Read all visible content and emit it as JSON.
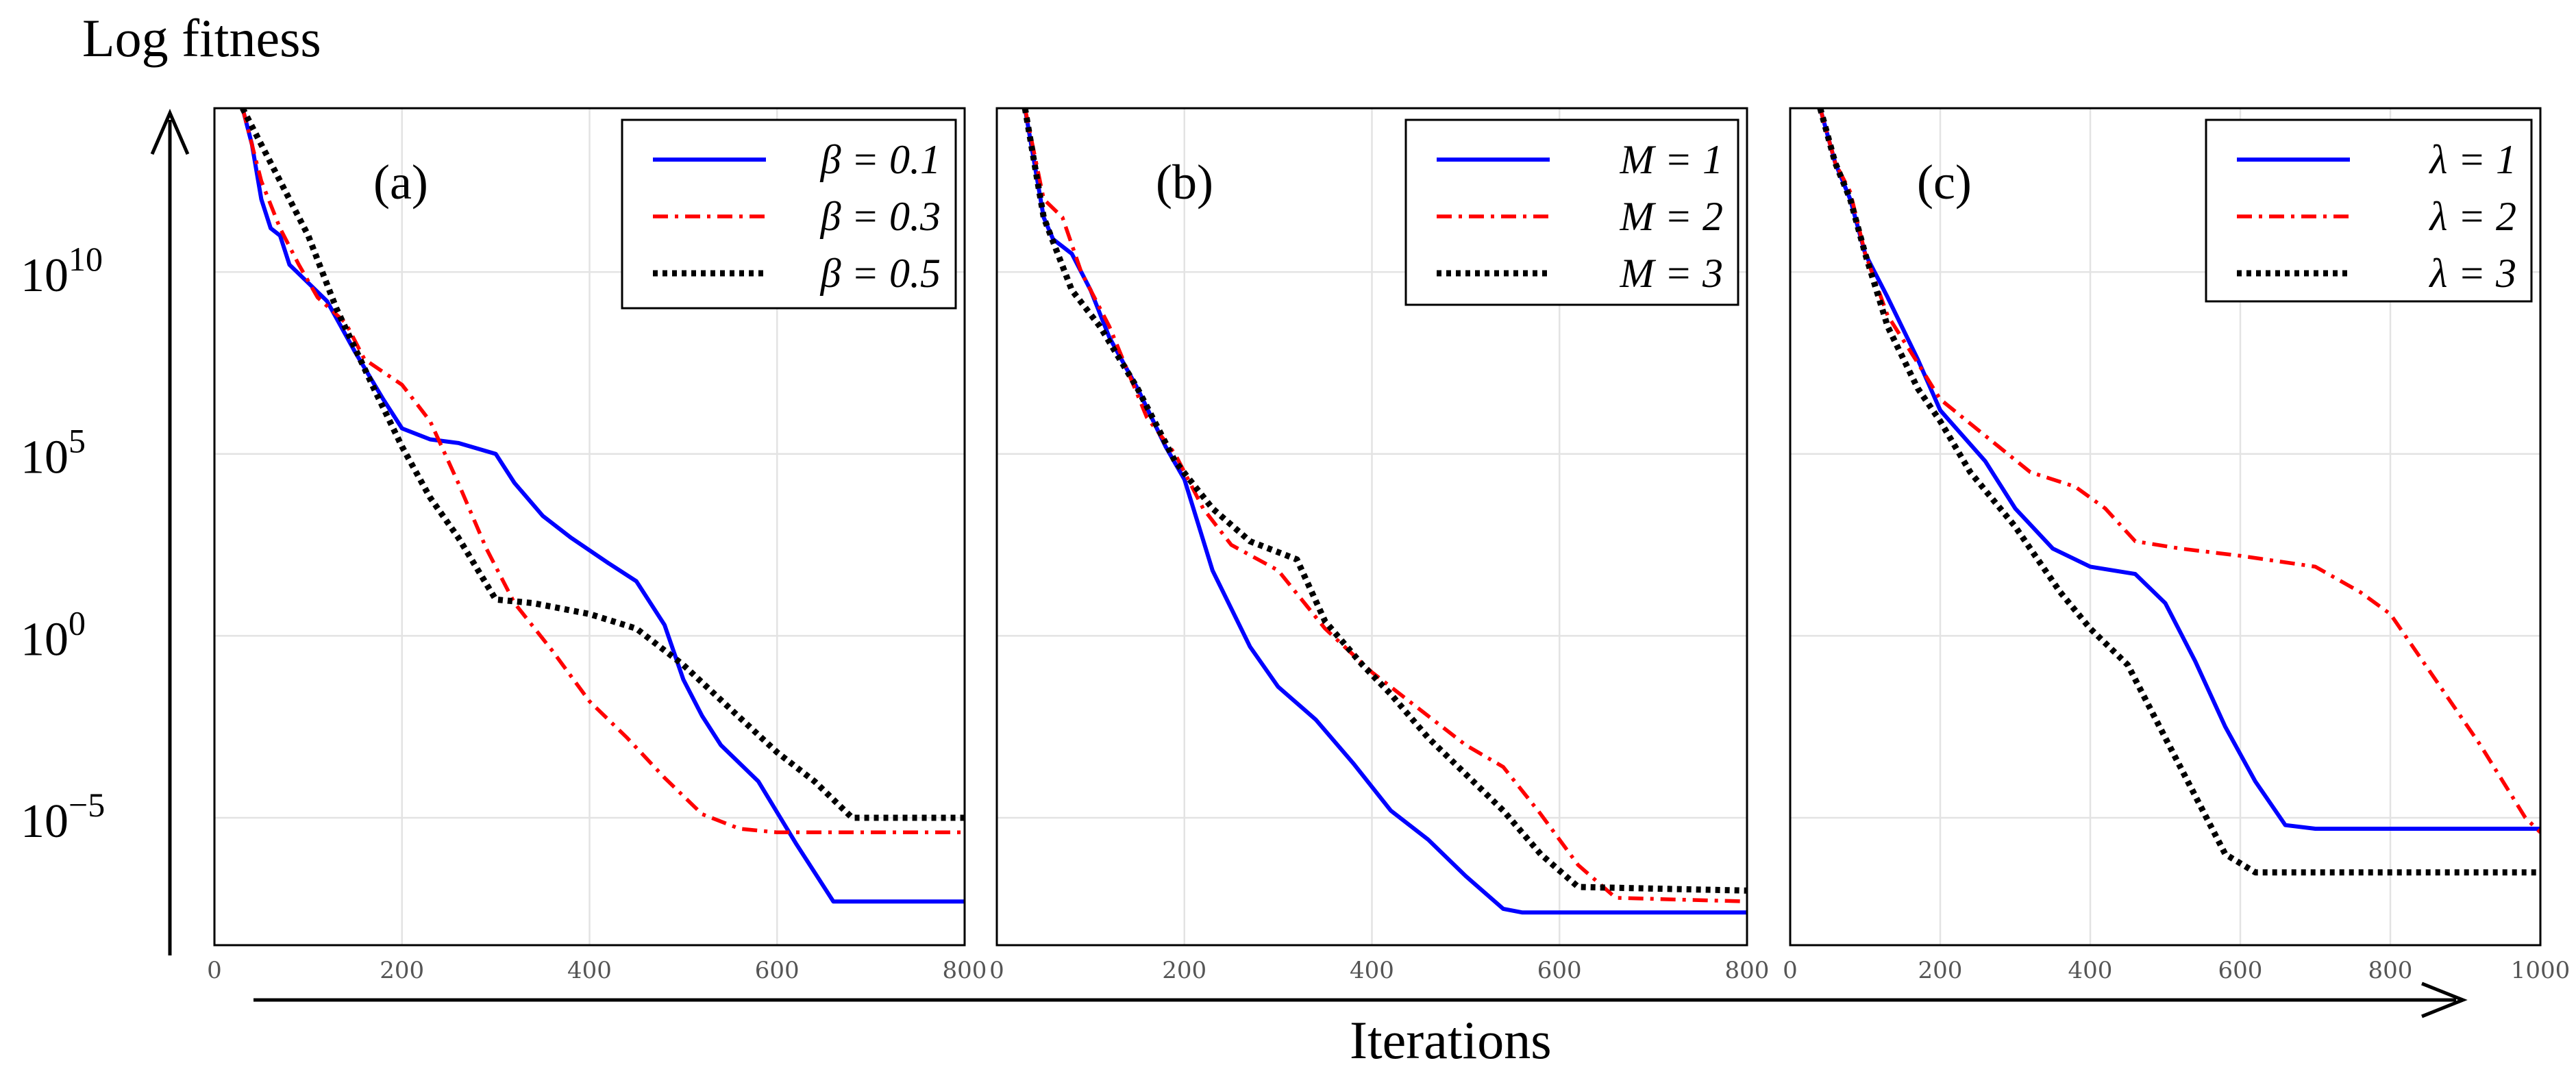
{
  "figure": {
    "ylabel": "Log fitness",
    "xlabel": "Iterations",
    "y_scale": "log",
    "grid": true
  },
  "colors": {
    "blue": "#0000ff",
    "red": "#ff0000",
    "black": "#000000"
  },
  "chart_data": [
    {
      "type": "line",
      "panel_label": "(a)",
      "xlim": [
        0,
        800
      ],
      "ylim_log10": [
        -8.5,
        14.5
      ],
      "x_ticks": [
        0,
        200,
        400,
        600,
        800
      ],
      "y_ticks": [
        {
          "exp": 10,
          "label": "10",
          "sup": "10"
        },
        {
          "exp": 5,
          "label": "10",
          "sup": "5"
        },
        {
          "exp": 0,
          "label": "10",
          "sup": "0"
        },
        {
          "exp": -5,
          "label": "10",
          "sup": "−5"
        }
      ],
      "legend_position": "top-right",
      "series": [
        {
          "name": "β = 0.1",
          "style": "solid",
          "color": "#0000ff",
          "log10_values": [
            [
              30,
              14.5
            ],
            [
              40,
              13.5
            ],
            [
              50,
              12
            ],
            [
              60,
              11.2
            ],
            [
              70,
              11
            ],
            [
              80,
              10.2
            ],
            [
              100,
              9.7
            ],
            [
              120,
              9.2
            ],
            [
              150,
              7.8
            ],
            [
              180,
              6.5
            ],
            [
              200,
              5.7
            ],
            [
              230,
              5.4
            ],
            [
              260,
              5.3
            ],
            [
              300,
              5.0
            ],
            [
              320,
              4.2
            ],
            [
              350,
              3.3
            ],
            [
              380,
              2.7
            ],
            [
              420,
              2.0
            ],
            [
              450,
              1.5
            ],
            [
              480,
              0.3
            ],
            [
              500,
              -1.2
            ],
            [
              520,
              -2.2
            ],
            [
              540,
              -3.0
            ],
            [
              580,
              -4.0
            ],
            [
              620,
              -5.7
            ],
            [
              660,
              -7.3
            ],
            [
              700,
              -7.3
            ],
            [
              800,
              -7.3
            ]
          ]
        },
        {
          "name": "β = 0.3",
          "style": "dashdot",
          "color": "#ff0000",
          "log10_values": [
            [
              30,
              14.5
            ],
            [
              50,
              12.5
            ],
            [
              70,
              11.2
            ],
            [
              90,
              10.2
            ],
            [
              110,
              9.3
            ],
            [
              140,
              8.6
            ],
            [
              160,
              7.6
            ],
            [
              200,
              6.9
            ],
            [
              230,
              5.9
            ],
            [
              260,
              4.2
            ],
            [
              290,
              2.4
            ],
            [
              320,
              0.9
            ],
            [
              360,
              -0.4
            ],
            [
              400,
              -1.8
            ],
            [
              440,
              -2.8
            ],
            [
              480,
              -3.9
            ],
            [
              520,
              -4.9
            ],
            [
              560,
              -5.3
            ],
            [
              600,
              -5.4
            ],
            [
              800,
              -5.4
            ]
          ]
        },
        {
          "name": "β = 0.5",
          "style": "dotted",
          "color": "#000000",
          "log10_values": [
            [
              30,
              14.5
            ],
            [
              50,
              13.5
            ],
            [
              70,
              12.5
            ],
            [
              100,
              11.0
            ],
            [
              130,
              9.0
            ],
            [
              170,
              6.8
            ],
            [
              200,
              5.2
            ],
            [
              230,
              3.8
            ],
            [
              260,
              2.7
            ],
            [
              300,
              1.0
            ],
            [
              340,
              0.9
            ],
            [
              400,
              0.6
            ],
            [
              450,
              0.2
            ],
            [
              500,
              -0.8
            ],
            [
              550,
              -2.0
            ],
            [
              600,
              -3.2
            ],
            [
              640,
              -4.0
            ],
            [
              680,
              -5.0
            ],
            [
              700,
              -5.0
            ],
            [
              800,
              -5.0
            ]
          ]
        }
      ]
    },
    {
      "type": "line",
      "panel_label": "(b)",
      "xlim": [
        0,
        800
      ],
      "ylim_log10": [
        -8.5,
        14.5
      ],
      "x_ticks": [
        0,
        200,
        400,
        600,
        800
      ],
      "legend_position": "top-right",
      "series": [
        {
          "name": "M = 1",
          "style": "solid",
          "color": "#0000ff",
          "log10_values": [
            [
              30,
              14.5
            ],
            [
              50,
              11.5
            ],
            [
              60,
              10.9
            ],
            [
              80,
              10.5
            ],
            [
              100,
              9.5
            ],
            [
              120,
              8.2
            ],
            [
              150,
              6.8
            ],
            [
              180,
              5.2
            ],
            [
              200,
              4.3
            ],
            [
              230,
              1.8
            ],
            [
              270,
              -0.3
            ],
            [
              300,
              -1.4
            ],
            [
              340,
              -2.3
            ],
            [
              380,
              -3.5
            ],
            [
              420,
              -4.8
            ],
            [
              460,
              -5.6
            ],
            [
              500,
              -6.6
            ],
            [
              540,
              -7.5
            ],
            [
              560,
              -7.6
            ],
            [
              800,
              -7.6
            ]
          ]
        },
        {
          "name": "M = 2",
          "style": "dashdot",
          "color": "#ff0000",
          "log10_values": [
            [
              30,
              14.5
            ],
            [
              50,
              12
            ],
            [
              70,
              11.5
            ],
            [
              90,
              10
            ],
            [
              120,
              8.5
            ],
            [
              160,
              6.0
            ],
            [
              190,
              5.0
            ],
            [
              220,
              3.5
            ],
            [
              250,
              2.5
            ],
            [
              300,
              1.8
            ],
            [
              350,
              0.2
            ],
            [
              400,
              -1.0
            ],
            [
              450,
              -2.0
            ],
            [
              500,
              -3.0
            ],
            [
              540,
              -3.6
            ],
            [
              580,
              -4.9
            ],
            [
              620,
              -6.3
            ],
            [
              660,
              -7.2
            ],
            [
              800,
              -7.3
            ]
          ]
        },
        {
          "name": "M = 3",
          "style": "dotted",
          "color": "#000000",
          "log10_values": [
            [
              30,
              14.5
            ],
            [
              50,
              11.5
            ],
            [
              80,
              9.5
            ],
            [
              110,
              8.5
            ],
            [
              150,
              6.8
            ],
            [
              190,
              4.8
            ],
            [
              230,
              3.5
            ],
            [
              270,
              2.6
            ],
            [
              300,
              2.3
            ],
            [
              320,
              2.1
            ],
            [
              350,
              0.4
            ],
            [
              390,
              -0.8
            ],
            [
              420,
              -1.6
            ],
            [
              460,
              -2.8
            ],
            [
              500,
              -3.8
            ],
            [
              540,
              -4.8
            ],
            [
              580,
              -6.0
            ],
            [
              620,
              -6.9
            ],
            [
              800,
              -7.0
            ]
          ]
        }
      ]
    },
    {
      "type": "line",
      "panel_label": "(c)",
      "xlim": [
        0,
        1000
      ],
      "ylim_log10": [
        -8.5,
        14.5
      ],
      "x_ticks": [
        0,
        200,
        400,
        600,
        800,
        1000
      ],
      "legend_position": "top-right",
      "series": [
        {
          "name": "λ = 1",
          "style": "solid",
          "color": "#0000ff",
          "log10_values": [
            [
              40,
              14.5
            ],
            [
              60,
              13.0
            ],
            [
              80,
              12.0
            ],
            [
              100,
              10.5
            ],
            [
              130,
              9.3
            ],
            [
              170,
              7.6
            ],
            [
              200,
              6.2
            ],
            [
              260,
              4.8
            ],
            [
              300,
              3.5
            ],
            [
              350,
              2.4
            ],
            [
              400,
              1.9
            ],
            [
              460,
              1.7
            ],
            [
              500,
              0.9
            ],
            [
              540,
              -0.7
            ],
            [
              580,
              -2.5
            ],
            [
              620,
              -4.0
            ],
            [
              660,
              -5.2
            ],
            [
              700,
              -5.3
            ],
            [
              1000,
              -5.3
            ]
          ]
        },
        {
          "name": "λ = 2",
          "style": "dashdot",
          "color": "#ff0000",
          "log10_values": [
            [
              40,
              14.5
            ],
            [
              60,
              13.0
            ],
            [
              80,
              12.2
            ],
            [
              100,
              10.5
            ],
            [
              130,
              8.8
            ],
            [
              170,
              7.5
            ],
            [
              200,
              6.5
            ],
            [
              260,
              5.5
            ],
            [
              320,
              4.5
            ],
            [
              380,
              4.1
            ],
            [
              420,
              3.5
            ],
            [
              460,
              2.6
            ],
            [
              520,
              2.4
            ],
            [
              600,
              2.2
            ],
            [
              700,
              1.9
            ],
            [
              760,
              1.2
            ],
            [
              800,
              0.6
            ],
            [
              860,
              -1.2
            ],
            [
              920,
              -3.0
            ],
            [
              980,
              -5.0
            ],
            [
              1000,
              -5.4
            ]
          ]
        },
        {
          "name": "λ = 3",
          "style": "dotted",
          "color": "#000000",
          "log10_values": [
            [
              40,
              14.5
            ],
            [
              60,
              13.0
            ],
            [
              80,
              12.0
            ],
            [
              100,
              10.5
            ],
            [
              130,
              8.5
            ],
            [
              170,
              6.8
            ],
            [
              200,
              5.9
            ],
            [
              240,
              4.5
            ],
            [
              300,
              3.0
            ],
            [
              360,
              1.2
            ],
            [
              400,
              0.2
            ],
            [
              450,
              -0.8
            ],
            [
              500,
              -2.8
            ],
            [
              540,
              -4.4
            ],
            [
              580,
              -6.0
            ],
            [
              620,
              -6.5
            ],
            [
              1000,
              -6.5
            ]
          ]
        }
      ]
    }
  ]
}
